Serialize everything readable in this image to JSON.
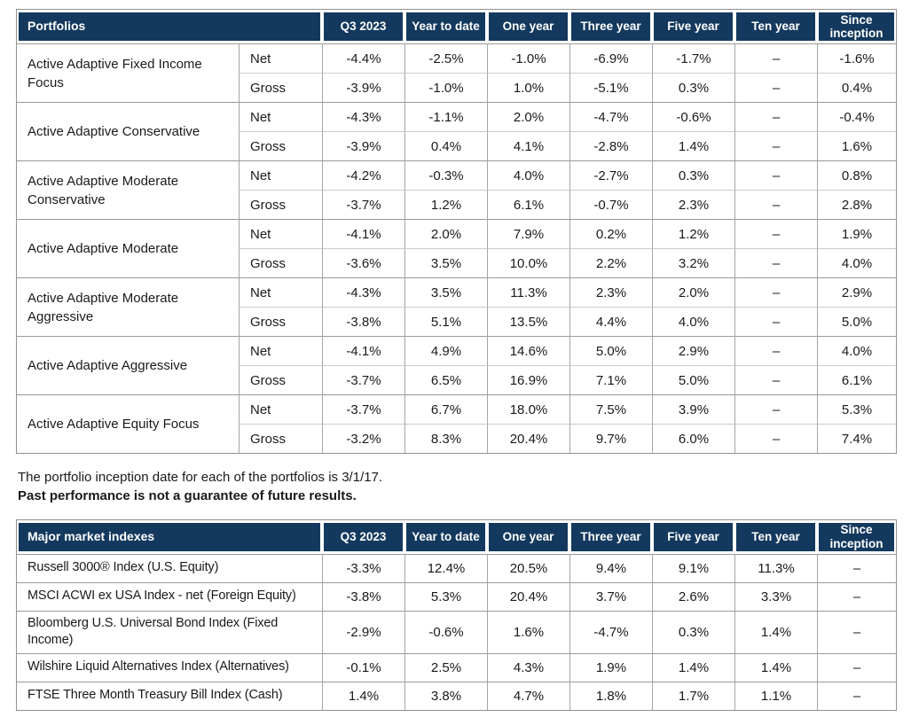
{
  "colors": {
    "header_bg": "#14395E",
    "header_text": "#FFFFFF"
  },
  "labels": {
    "net": "Net",
    "gross": "Gross"
  },
  "columns": [
    "Q3 2023",
    "Year to date",
    "One year",
    "Three year",
    "Five year",
    "Ten year",
    "Since inception"
  ],
  "portfolios_table": {
    "title": "Portfolios",
    "rows": [
      {
        "name": "Active Adaptive Fixed Income Focus",
        "net": [
          "-4.4%",
          "-2.5%",
          "-1.0%",
          "-6.9%",
          "-1.7%",
          "–",
          "-1.6%"
        ],
        "gross": [
          "-3.9%",
          "-1.0%",
          "1.0%",
          "-5.1%",
          "0.3%",
          "–",
          "0.4%"
        ]
      },
      {
        "name": "Active Adaptive Conservative",
        "net": [
          "-4.3%",
          "-1.1%",
          "2.0%",
          "-4.7%",
          "-0.6%",
          "–",
          "-0.4%"
        ],
        "gross": [
          "-3.9%",
          "0.4%",
          "4.1%",
          "-2.8%",
          "1.4%",
          "–",
          "1.6%"
        ]
      },
      {
        "name": "Active Adaptive Moderate Conservative",
        "net": [
          "-4.2%",
          "-0.3%",
          "4.0%",
          "-2.7%",
          "0.3%",
          "–",
          "0.8%"
        ],
        "gross": [
          "-3.7%",
          "1.2%",
          "6.1%",
          "-0.7%",
          "2.3%",
          "–",
          "2.8%"
        ]
      },
      {
        "name": "Active Adaptive Moderate",
        "net": [
          "-4.1%",
          "2.0%",
          "7.9%",
          "0.2%",
          "1.2%",
          "–",
          "1.9%"
        ],
        "gross": [
          "-3.6%",
          "3.5%",
          "10.0%",
          "2.2%",
          "3.2%",
          "–",
          "4.0%"
        ]
      },
      {
        "name": "Active Adaptive Moderate Aggressive",
        "net": [
          "-4.3%",
          "3.5%",
          "11.3%",
          "2.3%",
          "2.0%",
          "–",
          "2.9%"
        ],
        "gross": [
          "-3.8%",
          "5.1%",
          "13.5%",
          "4.4%",
          "4.0%",
          "–",
          "5.0%"
        ]
      },
      {
        "name": "Active Adaptive Aggressive",
        "net": [
          "-4.1%",
          "4.9%",
          "14.6%",
          "5.0%",
          "2.9%",
          "–",
          "4.0%"
        ],
        "gross": [
          "-3.7%",
          "6.5%",
          "16.9%",
          "7.1%",
          "5.0%",
          "–",
          "6.1%"
        ]
      },
      {
        "name": "Active Adaptive Equity Focus",
        "net": [
          "-3.7%",
          "6.7%",
          "18.0%",
          "7.5%",
          "3.9%",
          "–",
          "5.3%"
        ],
        "gross": [
          "-3.2%",
          "8.3%",
          "20.4%",
          "9.7%",
          "6.0%",
          "–",
          "7.4%"
        ]
      }
    ]
  },
  "notes": {
    "inception": "The portfolio inception date for each of the portfolios is 3/1/17.",
    "disclaimer": "Past performance is not a guarantee of future results."
  },
  "indexes_table": {
    "title": "Major market indexes",
    "rows": [
      {
        "name": "Russell 3000® Index (U.S. Equity)",
        "values": [
          "-3.3%",
          "12.4%",
          "20.5%",
          "9.4%",
          "9.1%",
          "11.3%",
          "–"
        ]
      },
      {
        "name": "MSCI ACWI ex USA Index - net (Foreign Equity)",
        "values": [
          "-3.8%",
          "5.3%",
          "20.4%",
          "3.7%",
          "2.6%",
          "3.3%",
          "–"
        ]
      },
      {
        "name": "Bloomberg U.S. Universal Bond Index (Fixed Income)",
        "values": [
          "-2.9%",
          "-0.6%",
          "1.6%",
          "-4.7%",
          "0.3%",
          "1.4%",
          "–"
        ]
      },
      {
        "name": "Wilshire Liquid Alternatives Index (Alternatives)",
        "values": [
          "-0.1%",
          "2.5%",
          "4.3%",
          "1.9%",
          "1.4%",
          "1.4%",
          "–"
        ]
      },
      {
        "name": "FTSE Three Month Treasury Bill Index (Cash)",
        "values": [
          "1.4%",
          "3.8%",
          "4.7%",
          "1.8%",
          "1.7%",
          "1.1%",
          "–"
        ]
      }
    ]
  }
}
